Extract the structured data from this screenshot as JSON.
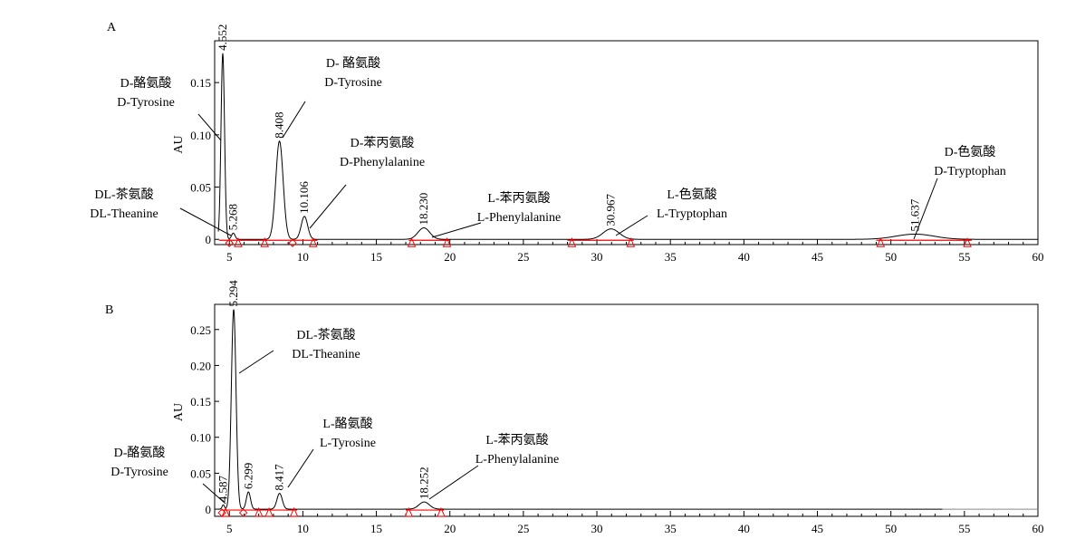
{
  "chart_data": [
    {
      "type": "line",
      "panel_label": "A",
      "ylabel": "AU",
      "xlim": [
        4,
        60
      ],
      "ylim": [
        -0.005,
        0.19
      ],
      "x_ticks": [
        5,
        10,
        15,
        20,
        25,
        30,
        35,
        40,
        45,
        50,
        55,
        60
      ],
      "y_ticks": [
        0,
        0.05,
        0.1,
        0.15
      ],
      "y_tick_labels": [
        "0",
        "0.05",
        "0.10",
        "0.15"
      ],
      "peaks": [
        {
          "rt": 4.552,
          "rt_label": "4.552",
          "height": 0.178,
          "width": 0.12
        },
        {
          "rt": 5.268,
          "rt_label": "5.268",
          "height": 0.006,
          "width": 0.12
        },
        {
          "rt": 8.408,
          "rt_label": "8.408",
          "height": 0.094,
          "width": 0.25
        },
        {
          "rt": 10.106,
          "rt_label": "10.106",
          "height": 0.022,
          "width": 0.22
        },
        {
          "rt": 18.23,
          "rt_label": "18.230",
          "height": 0.011,
          "width": 0.4
        },
        {
          "rt": 30.967,
          "rt_label": "30.967",
          "height": 0.01,
          "width": 0.55
        },
        {
          "rt": 51.637,
          "rt_label": "51.637",
          "height": 0.005,
          "width": 1.3
        }
      ],
      "annotations": [
        {
          "zh": "D-酪氨酸",
          "en": "D-Tyrosine",
          "target_rt": 4.552
        },
        {
          "zh": "DL-茶氨酸",
          "en": "DL-Theanine",
          "target_rt": 5.268
        },
        {
          "zh": "D- 酪氨酸",
          "en": "D-Tyrosine",
          "target_rt": 8.408
        },
        {
          "zh": "D-苯丙氨酸",
          "en": "D-Phenylalanine",
          "target_rt": 10.106
        },
        {
          "zh": "L-苯丙氨酸",
          "en": "L-Phenylalanine",
          "target_rt": 18.23
        },
        {
          "zh": "L-色氨酸",
          "en": "L-Tryptophan",
          "target_rt": 30.967
        },
        {
          "zh": "D-色氨酸",
          "en": "D-Tryptophan",
          "target_rt": 51.637
        }
      ],
      "integration_marks": [
        {
          "x": 5.0,
          "shape": "diamond"
        },
        {
          "x": 5.6,
          "shape": "triangle"
        },
        {
          "x": 7.4,
          "shape": "triangle"
        },
        {
          "x": 9.3,
          "shape": "diamond"
        },
        {
          "x": 10.7,
          "shape": "triangle"
        },
        {
          "x": 17.4,
          "shape": "triangle"
        },
        {
          "x": 19.8,
          "shape": "triangle"
        },
        {
          "x": 28.3,
          "shape": "triangle"
        },
        {
          "x": 32.3,
          "shape": "triangle"
        },
        {
          "x": 49.3,
          "shape": "triangle"
        },
        {
          "x": 55.2,
          "shape": "triangle"
        }
      ],
      "baseline_segments": [
        [
          4.3,
          11.0
        ],
        [
          17.2,
          20.0
        ],
        [
          28.0,
          32.5
        ],
        [
          49.0,
          55.5
        ]
      ]
    },
    {
      "type": "line",
      "panel_label": "B",
      "ylabel": "AU",
      "xlim": [
        4,
        60
      ],
      "ylim": [
        -0.01,
        0.285
      ],
      "x_ticks": [
        5,
        10,
        15,
        20,
        25,
        30,
        35,
        40,
        45,
        50,
        55,
        60
      ],
      "y_ticks": [
        0,
        0.05,
        0.1,
        0.15,
        0.2,
        0.25
      ],
      "y_tick_labels": [
        "0",
        "0.05",
        "0.10",
        "0.15",
        "0.20",
        "0.25"
      ],
      "peaks": [
        {
          "rt": 4.587,
          "rt_label": "4.587",
          "height": 0.006,
          "width": 0.08
        },
        {
          "rt": 5.294,
          "rt_label": "5.294",
          "height": 0.278,
          "width": 0.16
        },
        {
          "rt": 6.299,
          "rt_label": "6.299",
          "height": 0.024,
          "width": 0.14
        },
        {
          "rt": 8.417,
          "rt_label": "8.417",
          "height": 0.022,
          "width": 0.18
        },
        {
          "rt": 18.252,
          "rt_label": "18.252",
          "height": 0.01,
          "width": 0.35
        }
      ],
      "annotations": [
        {
          "zh": "D-酪氨酸",
          "en": "D-Tyrosine",
          "target_rt": 4.587
        },
        {
          "zh": "DL-茶氨酸",
          "en": "DL-Theanine",
          "target_rt": 5.294
        },
        {
          "zh": "L-酪氨酸",
          "en": "L-Tyrosine",
          "target_rt": 8.417
        },
        {
          "zh": "L-苯丙氨酸",
          "en": "L-Phenylalanine",
          "target_rt": 18.252
        }
      ],
      "integration_marks": [
        {
          "x": 4.5,
          "shape": "diamond"
        },
        {
          "x": 4.75,
          "shape": "triangle"
        },
        {
          "x": 5.95,
          "shape": "diamond"
        },
        {
          "x": 7.0,
          "shape": "triangle"
        },
        {
          "x": 7.7,
          "shape": "triangle"
        },
        {
          "x": 9.4,
          "shape": "triangle"
        },
        {
          "x": 17.2,
          "shape": "triangle"
        },
        {
          "x": 19.4,
          "shape": "triangle"
        }
      ],
      "baseline_segments": [
        [
          4.4,
          9.6
        ],
        [
          17.0,
          19.6
        ]
      ],
      "trace_end": 53.5
    }
  ],
  "colors": {
    "trace": "#000000",
    "integration": "#ff0000",
    "axis": "#000000"
  }
}
